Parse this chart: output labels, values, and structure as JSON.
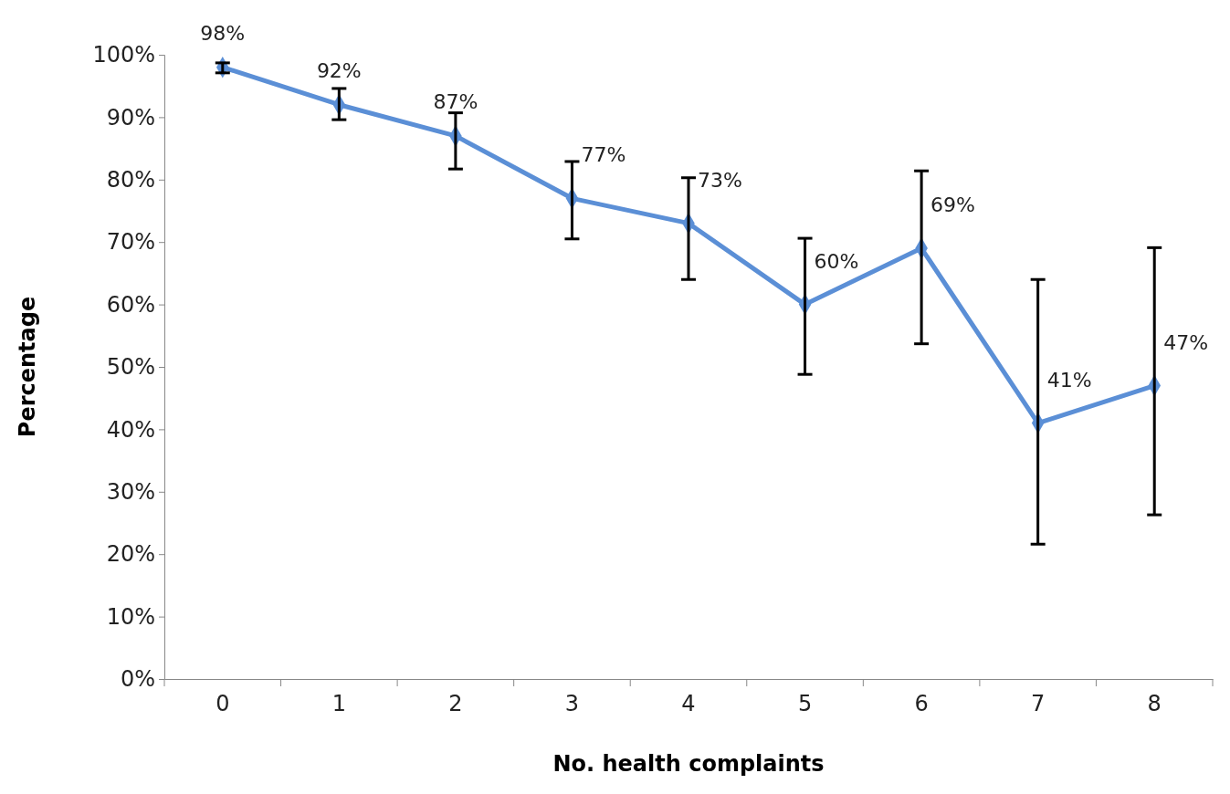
{
  "chart_data": {
    "type": "line",
    "xlabel": "No. health complaints",
    "ylabel": "Percentage",
    "categories": [
      "0",
      "1",
      "2",
      "3",
      "4",
      "5",
      "6",
      "7",
      "8"
    ],
    "series": [
      {
        "color": "#5b8fd6",
        "values": [
          98,
          92,
          87,
          77,
          73,
          60,
          69,
          41,
          47
        ],
        "value_labels": [
          "98%",
          "92%",
          "87%",
          "77%",
          "73%",
          "60%",
          "69%",
          "41%",
          "47%"
        ],
        "errors": [
          [
            97.1,
            98.7
          ],
          [
            89.6,
            94.6
          ],
          [
            81.7,
            90.7
          ],
          [
            70.5,
            82.9
          ],
          [
            64.0,
            80.3
          ],
          [
            48.8,
            70.6
          ],
          [
            53.7,
            81.4
          ],
          [
            21.6,
            64.0
          ],
          [
            26.3,
            69.1
          ]
        ]
      }
    ],
    "ylim": [
      0,
      100
    ],
    "yticks": [
      {
        "value": 0,
        "label": "0%"
      },
      {
        "value": 10,
        "label": "10%"
      },
      {
        "value": 20,
        "label": "20%"
      },
      {
        "value": 30,
        "label": "30%"
      },
      {
        "value": 40,
        "label": "40%"
      },
      {
        "value": 50,
        "label": "50%"
      },
      {
        "value": 60,
        "label": "60%"
      },
      {
        "value": 70,
        "label": "70%"
      },
      {
        "value": 80,
        "label": "80%"
      },
      {
        "value": 90,
        "label": "90%"
      },
      {
        "value": 100,
        "label": "100%"
      }
    ],
    "marker": "diamond",
    "line_style": "solid"
  }
}
